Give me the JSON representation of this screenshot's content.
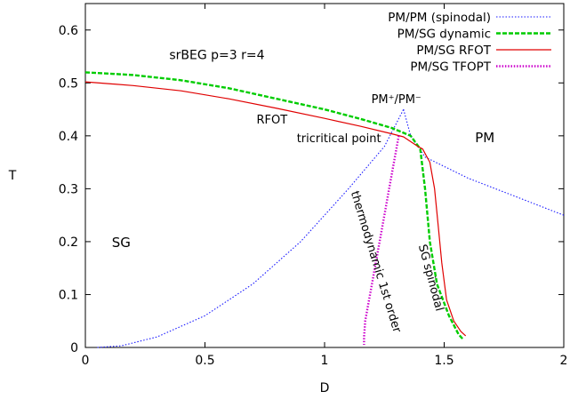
{
  "chart_data": {
    "type": "line",
    "xlabel": "D",
    "ylabel": "T",
    "xlim": [
      0,
      2
    ],
    "ylim": [
      0,
      0.65
    ],
    "xticks": [
      "0",
      "0.5",
      "1",
      "1.5",
      "2"
    ],
    "yticks": [
      "0",
      "0.1",
      "0.2",
      "0.3",
      "0.4",
      "0.5",
      "0.6"
    ],
    "grid": false,
    "legend_position": "top-right",
    "series": [
      {
        "name": "PM/PM (spinodal)",
        "color": "#1a1aff",
        "style": "dotted",
        "segments": [
          [
            [
              0.05,
              0.0
            ],
            [
              0.15,
              0.003
            ],
            [
              0.3,
              0.02
            ],
            [
              0.5,
              0.06
            ],
            [
              0.7,
              0.12
            ],
            [
              0.9,
              0.2
            ],
            [
              1.1,
              0.3
            ],
            [
              1.25,
              0.38
            ],
            [
              1.33,
              0.45
            ]
          ],
          [
            [
              1.33,
              0.45
            ],
            [
              1.36,
              0.4
            ],
            [
              1.42,
              0.36
            ],
            [
              1.6,
              0.32
            ],
            [
              1.8,
              0.285
            ],
            [
              2.0,
              0.25
            ]
          ]
        ]
      },
      {
        "name": "PM/SG dynamic",
        "color": "#00cc00",
        "style": "dashed",
        "segments": [
          [
            [
              0.0,
              0.52
            ],
            [
              0.2,
              0.515
            ],
            [
              0.4,
              0.505
            ],
            [
              0.6,
              0.49
            ],
            [
              0.8,
              0.47
            ],
            [
              1.0,
              0.45
            ],
            [
              1.15,
              0.432
            ],
            [
              1.28,
              0.415
            ],
            [
              1.36,
              0.4
            ],
            [
              1.4,
              0.375
            ],
            [
              1.42,
              0.3
            ],
            [
              1.44,
              0.2
            ],
            [
              1.47,
              0.12
            ],
            [
              1.52,
              0.06
            ],
            [
              1.56,
              0.025
            ],
            [
              1.58,
              0.015
            ]
          ]
        ]
      },
      {
        "name": "PM/SG RFOT",
        "color": "#e00000",
        "style": "solid",
        "segments": [
          [
            [
              0.0,
              0.502
            ],
            [
              0.2,
              0.495
            ],
            [
              0.4,
              0.485
            ],
            [
              0.6,
              0.47
            ],
            [
              0.8,
              0.452
            ],
            [
              1.0,
              0.433
            ],
            [
              1.15,
              0.418
            ],
            [
              1.28,
              0.404
            ],
            [
              1.33,
              0.398
            ],
            [
              1.39,
              0.38
            ],
            [
              1.41,
              0.375
            ],
            [
              1.44,
              0.35
            ],
            [
              1.46,
              0.3
            ],
            [
              1.475,
              0.23
            ],
            [
              1.49,
              0.16
            ],
            [
              1.51,
              0.09
            ],
            [
              1.54,
              0.05
            ],
            [
              1.57,
              0.03
            ],
            [
              1.59,
              0.022
            ]
          ]
        ]
      },
      {
        "name": "PM/SG TFOPT",
        "color": "#cc00cc",
        "style": "dotted-thick",
        "segments": [
          [
            [
              1.31,
              0.4
            ],
            [
              1.29,
              0.35
            ],
            [
              1.27,
              0.3
            ],
            [
              1.25,
              0.25
            ],
            [
              1.23,
              0.2
            ],
            [
              1.21,
              0.15
            ],
            [
              1.19,
              0.1
            ],
            [
              1.17,
              0.05
            ],
            [
              1.165,
              0.02
            ],
            [
              1.165,
              0.005
            ]
          ]
        ]
      }
    ],
    "annotations": [
      {
        "id": "title",
        "text": "srBEG p=3 r=4",
        "x": 0.55,
        "y": 0.545
      },
      {
        "id": "rfot",
        "text": "RFOT",
        "x": 0.78,
        "y": 0.423
      },
      {
        "id": "tricritical",
        "text": "tricritical point",
        "x": 1.06,
        "y": 0.388
      },
      {
        "id": "pm-pm",
        "text": "PM⁺/PM⁻",
        "x": 1.3,
        "y": 0.462
      },
      {
        "id": "pm-region",
        "text": "PM",
        "x": 1.67,
        "y": 0.388
      },
      {
        "id": "sg-region",
        "text": "SG",
        "x": 0.15,
        "y": 0.19
      },
      {
        "id": "thermo",
        "text": "thermodynamic 1st order",
        "x": 1.2,
        "y": 0.16,
        "rotate": 73
      },
      {
        "id": "sg-spinodal",
        "text": "SG spinodal",
        "x": 1.43,
        "y": 0.13,
        "rotate": 75
      }
    ]
  }
}
